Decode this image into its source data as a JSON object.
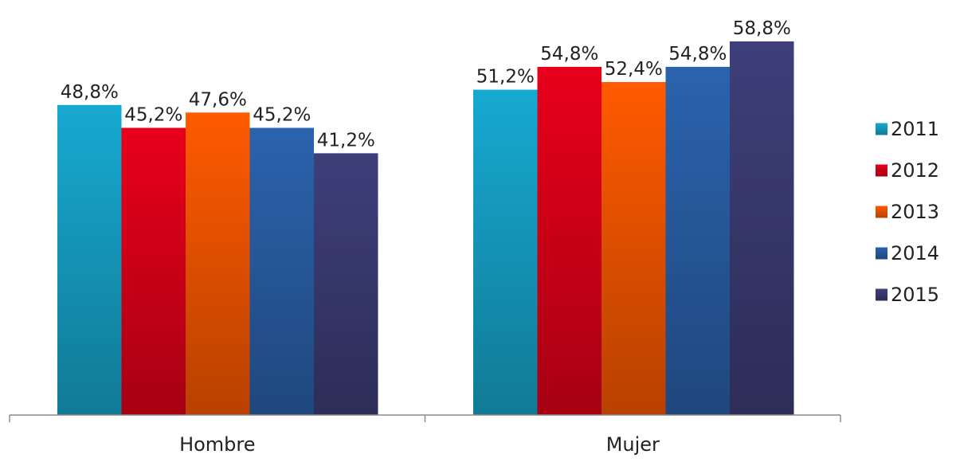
{
  "chart_data": {
    "type": "bar",
    "categories": [
      "Hombre",
      "Mujer"
    ],
    "series": [
      {
        "name": "2011",
        "color": "#17a9d1",
        "values": [
          48.8,
          51.2
        ],
        "labels": [
          "48,8%",
          "51,2%"
        ]
      },
      {
        "name": "2012",
        "color": "#e8001a",
        "values": [
          45.2,
          54.8
        ],
        "labels": [
          "45,2%",
          "54,8%"
        ]
      },
      {
        "name": "2013",
        "color": "#ff5a00",
        "values": [
          47.6,
          52.4
        ],
        "labels": [
          "47,6%",
          "52,4%"
        ]
      },
      {
        "name": "2014",
        "color": "#2b63ad",
        "values": [
          45.2,
          54.8
        ],
        "labels": [
          "45,2%",
          "54,8%"
        ]
      },
      {
        "name": "2015",
        "color": "#3e3f7a",
        "values": [
          41.2,
          58.8
        ],
        "labels": [
          "41,2%",
          "58,8%"
        ]
      }
    ],
    "title": "",
    "xlabel": "",
    "ylabel": "",
    "ylim": [
      0,
      58.8
    ],
    "grid": false,
    "legend_position": "right"
  }
}
